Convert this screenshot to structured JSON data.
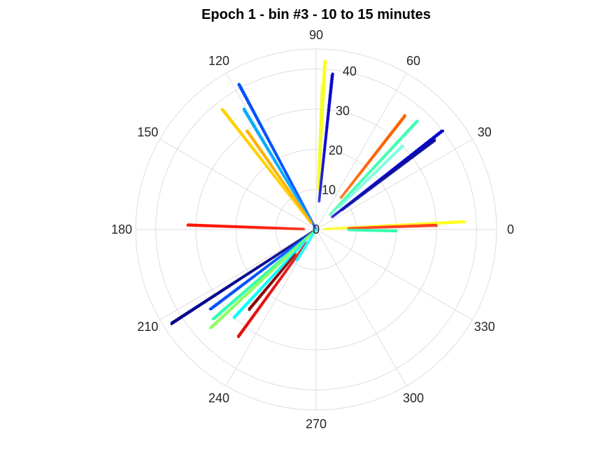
{
  "chart_data": {
    "type": "scatter",
    "coordinate_system": "polar",
    "title": "Epoch 1 - bin #3 - 10 to 15 minutes",
    "theta_ticks": [
      "0",
      "30",
      "60",
      "90",
      "120",
      "150",
      "180",
      "210",
      "240",
      "270",
      "300",
      "330"
    ],
    "r_ticks": [
      "0",
      "10",
      "20",
      "30",
      "40"
    ],
    "r_lim": [
      0,
      45
    ],
    "grid": true,
    "colormap": "jet",
    "series": [
      {
        "theta": 87,
        "r_start": 10,
        "r_end": 42,
        "color": "#ffff00"
      },
      {
        "theta": 87.5,
        "r_start": 12,
        "r_end": 36,
        "color": "#f0ff30"
      },
      {
        "theta": 84,
        "r_start": 7,
        "r_end": 39,
        "color": "#0a0acc"
      },
      {
        "theta": 52,
        "r_start": 10,
        "r_end": 36,
        "color": "#ff6000"
      },
      {
        "theta": 47,
        "r_start": 5,
        "r_end": 37,
        "color": "#40ffb0"
      },
      {
        "theta": 44,
        "r_start": 8,
        "r_end": 30,
        "color": "#80ffe0"
      },
      {
        "theta": 38,
        "r_start": 5,
        "r_end": 40,
        "color": "#0000cd"
      },
      {
        "theta": 37,
        "r_start": 8,
        "r_end": 37,
        "color": "#1010a0"
      },
      {
        "theta": 3,
        "r_start": 2,
        "r_end": 37,
        "color": "#ffff20"
      },
      {
        "theta": 2,
        "r_start": 8,
        "r_end": 30,
        "color": "#ff4020"
      },
      {
        "theta": -1,
        "r_start": 8,
        "r_end": 20,
        "color": "#30ffb0"
      },
      {
        "theta": 118,
        "r_start": 0,
        "r_end": 41,
        "color": "#0050ff"
      },
      {
        "theta": 121,
        "r_start": 3,
        "r_end": 35,
        "color": "#00aaff"
      },
      {
        "theta": 128,
        "r_start": 2,
        "r_end": 38,
        "color": "#ffd000"
      },
      {
        "theta": 125,
        "r_start": 2,
        "r_end": 30,
        "color": "#ffb000"
      },
      {
        "theta": 178,
        "r_start": 3,
        "r_end": 32,
        "color": "#ff1500"
      },
      {
        "theta": 213,
        "r_start": 1,
        "r_end": 43,
        "color": "#00008b"
      },
      {
        "theta": 217,
        "r_start": 3,
        "r_end": 33,
        "color": "#0050ff"
      },
      {
        "theta": 221,
        "r_start": 2,
        "r_end": 34,
        "color": "#30ffb0"
      },
      {
        "theta": 223,
        "r_start": 1,
        "r_end": 36,
        "color": "#90ff60"
      },
      {
        "theta": 227,
        "r_start": 4,
        "r_end": 30,
        "color": "#00ffff"
      },
      {
        "theta": 230,
        "r_start": 8,
        "r_end": 26,
        "color": "#8b0000"
      },
      {
        "theta": 234,
        "r_start": 4,
        "r_end": 33,
        "color": "#e01010"
      },
      {
        "theta": 238,
        "r_start": 0,
        "r_end": 9,
        "color": "#20ffff"
      }
    ]
  }
}
